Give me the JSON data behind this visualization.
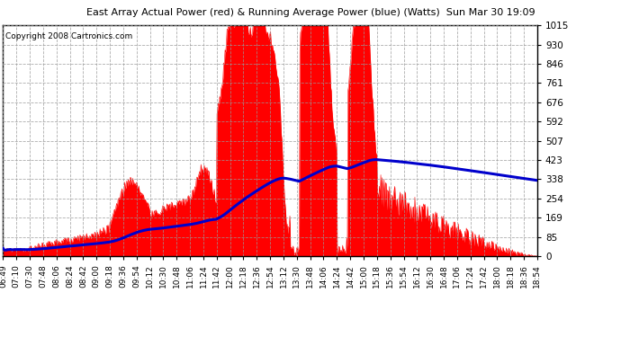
{
  "title": "East Array Actual Power (red) & Running Average Power (blue) (Watts)  Sun Mar 30 19:09",
  "copyright": "Copyright 2008 Cartronics.com",
  "background_color": "#ffffff",
  "plot_bg_color": "#ffffff",
  "grid_color": "#999999",
  "actual_color": "#ff0000",
  "avg_color": "#0000cc",
  "ylim": [
    0.0,
    1014.8
  ],
  "yticks": [
    0.0,
    84.6,
    169.1,
    253.7,
    338.3,
    422.8,
    507.4,
    591.9,
    676.5,
    761.1,
    845.6,
    930.2,
    1014.8
  ],
  "x_labels": [
    "06:49",
    "07:10",
    "07:30",
    "07:48",
    "08:06",
    "08:24",
    "08:42",
    "09:00",
    "09:18",
    "09:36",
    "09:54",
    "10:12",
    "10:30",
    "10:48",
    "11:06",
    "11:24",
    "11:42",
    "12:00",
    "12:18",
    "12:36",
    "12:54",
    "13:12",
    "13:30",
    "13:48",
    "14:06",
    "14:24",
    "14:42",
    "15:00",
    "15:18",
    "15:36",
    "15:54",
    "16:12",
    "16:30",
    "16:48",
    "17:06",
    "17:24",
    "17:42",
    "18:00",
    "18:18",
    "18:36",
    "18:54"
  ]
}
